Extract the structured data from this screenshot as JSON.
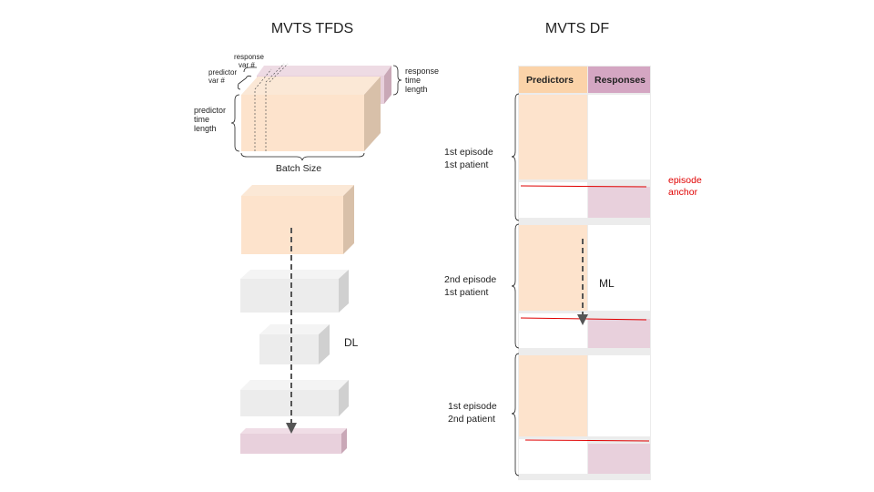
{
  "titles": {
    "left": "MVTS TFDS",
    "right": "MVTS DF"
  },
  "tfds_top": {
    "response_var": [
      "response",
      "var #"
    ],
    "predictor_var": [
      "predictor",
      "var #"
    ],
    "response_time": [
      "response",
      "time",
      "length"
    ],
    "predictor_time": [
      "predictor",
      "time",
      "length"
    ],
    "batch_size": "Batch Size"
  },
  "dl_label": "DL",
  "df": {
    "col_predictors": "Predictors",
    "col_responses": "Responses",
    "episode_anchor": [
      "episode",
      "anchor"
    ],
    "ml_label": "ML",
    "episodes": [
      [
        "1st episode",
        "1st patient"
      ],
      [
        "2nd episode",
        "1st patient"
      ],
      [
        "1st episode",
        "2nd patient"
      ]
    ]
  },
  "colors": {
    "predictor": "#fde3cc",
    "response": "#e8d0dc",
    "response_header": "#d4a6c2",
    "hidden": "#ececec",
    "anchor": "#e00000"
  }
}
